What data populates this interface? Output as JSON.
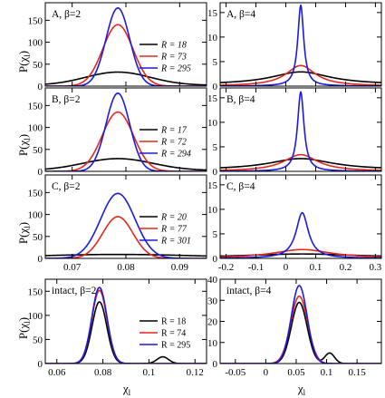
{
  "colors": {
    "black": "#000000",
    "red": "#e8261c",
    "blue": "#1a1ae0"
  },
  "axis_labels": {
    "y": "P(χ",
    "y_sub": "l",
    "y_close": ")",
    "x": "χ",
    "x_sub": "l"
  },
  "chart_data": [
    {
      "type": "line",
      "label": "A, β=2",
      "legend_italic": true,
      "xlim": [
        0.065,
        0.095
      ],
      "ylim": [
        0,
        190
      ],
      "yticks": [
        0,
        50,
        100,
        150
      ],
      "xticks": [
        0.07,
        0.08,
        0.09
      ],
      "series": [
        {
          "name": "R = 18",
          "color": "black",
          "peak": 30,
          "sigma": 0.006,
          "base": 2
        },
        {
          "name": "R = 73",
          "color": "red",
          "peak": 140,
          "sigma": 0.0028,
          "base": 0
        },
        {
          "name": "R = 295",
          "color": "blue",
          "peak": 178,
          "sigma": 0.0022,
          "base": 0
        }
      ],
      "center": 0.0785
    },
    {
      "type": "line",
      "label": "A, β=4",
      "xlim": [
        -0.22,
        0.32
      ],
      "ylim": [
        0,
        17
      ],
      "yticks": [
        0,
        5,
        10,
        15
      ],
      "xticks": [
        -0.2,
        -0.1,
        0,
        0.1,
        0.2,
        0.3
      ],
      "series": [
        {
          "name": "",
          "color": "black",
          "peak": 2.6,
          "sigma": 0.12,
          "base": 0.3
        },
        {
          "name": "",
          "color": "red",
          "peak": 4.2,
          "sigma": 0.06,
          "base": 0
        },
        {
          "name": "",
          "color": "blue",
          "peak": 16.5,
          "sigma": 0.012,
          "base": 0
        }
      ],
      "center": 0.05,
      "lorentz": true
    },
    {
      "type": "line",
      "label": "B, β=2",
      "legend_italic": true,
      "xlim": [
        0.065,
        0.095
      ],
      "ylim": [
        0,
        190
      ],
      "yticks": [
        0,
        50,
        100,
        150
      ],
      "xticks": [
        0.07,
        0.08,
        0.09
      ],
      "series": [
        {
          "name": "R = 17",
          "color": "black",
          "peak": 27,
          "sigma": 0.0065,
          "base": 2
        },
        {
          "name": "R = 72",
          "color": "red",
          "peak": 135,
          "sigma": 0.0029,
          "base": 0
        },
        {
          "name": "R = 294",
          "color": "blue",
          "peak": 178,
          "sigma": 0.0022,
          "base": 0
        }
      ],
      "center": 0.0785
    },
    {
      "type": "line",
      "label": "B, β=4",
      "xlim": [
        -0.22,
        0.32
      ],
      "ylim": [
        0,
        17
      ],
      "yticks": [
        0,
        5,
        10,
        15
      ],
      "xticks": [
        -0.2,
        -0.1,
        0,
        0.1,
        0.2,
        0.3
      ],
      "series": [
        {
          "name": "",
          "color": "black",
          "peak": 2.3,
          "sigma": 0.13,
          "base": 0.3
        },
        {
          "name": "",
          "color": "red",
          "peak": 3.4,
          "sigma": 0.07,
          "base": 0
        },
        {
          "name": "",
          "color": "blue",
          "peak": 16.2,
          "sigma": 0.013,
          "base": 0
        }
      ],
      "center": 0.05,
      "lorentz": true
    },
    {
      "type": "line",
      "label": "C, β=2",
      "legend_italic": true,
      "xlim": [
        0.065,
        0.095
      ],
      "ylim": [
        0,
        190
      ],
      "yticks": [
        0,
        50,
        100,
        150
      ],
      "xticks": [
        0.07,
        0.08,
        0.09
      ],
      "series": [
        {
          "name": "R = 20",
          "color": "black",
          "peak": 8,
          "sigma": 0.015,
          "base": 1
        },
        {
          "name": "R = 77",
          "color": "red",
          "peak": 95,
          "sigma": 0.0028,
          "base": 0
        },
        {
          "name": "R = 301",
          "color": "blue",
          "peak": 148,
          "sigma": 0.0032,
          "base": 0
        }
      ],
      "center": 0.0785
    },
    {
      "type": "line",
      "label": "C, β=4",
      "xlim": [
        -0.22,
        0.32
      ],
      "ylim": [
        0,
        17
      ],
      "yticks": [
        0,
        5,
        10,
        15
      ],
      "xticks": [
        -0.2,
        -0.1,
        0,
        0.1,
        0.2,
        0.3
      ],
      "series": [
        {
          "name": "",
          "color": "black",
          "peak": 0.8,
          "sigma": 0.25,
          "base": 0.1
        },
        {
          "name": "",
          "color": "red",
          "peak": 1.8,
          "sigma": 0.12,
          "base": 0
        },
        {
          "name": "",
          "color": "blue",
          "peak": 9.3,
          "sigma": 0.025,
          "base": 0
        }
      ],
      "center": 0.055,
      "lorentz": true
    },
    {
      "type": "line",
      "label": "intact, β=2",
      "legend_italic": false,
      "xlim": [
        0.055,
        0.125
      ],
      "ylim": [
        0,
        175
      ],
      "yticks": [
        0,
        50,
        100,
        150
      ],
      "xticks": [
        0.06,
        0.08,
        0.1,
        0.12
      ],
      "series": [
        {
          "name": "R = 18",
          "color": "black",
          "peak": 128,
          "sigma": 0.0032,
          "base": 0,
          "bump": [
            0.106,
            14,
            0.0025
          ]
        },
        {
          "name": "R = 74",
          "color": "red",
          "peak": 152,
          "sigma": 0.0033,
          "base": 0
        },
        {
          "name": "R = 295",
          "color": "blue",
          "peak": 158,
          "sigma": 0.0033,
          "base": 0
        }
      ],
      "center": 0.0785
    },
    {
      "type": "line",
      "label": "intact, β=4",
      "xlim": [
        -0.075,
        0.19
      ],
      "ylim": [
        0,
        40
      ],
      "yticks": [
        0,
        10,
        20,
        30,
        40
      ],
      "xticks": [
        -0.05,
        0,
        0.05,
        0.1,
        0.15
      ],
      "series": [
        {
          "name": "",
          "color": "black",
          "peak": 29,
          "sigma": 0.013,
          "base": 0,
          "bump": [
            0.105,
            5,
            0.008
          ]
        },
        {
          "name": "",
          "color": "red",
          "peak": 32,
          "sigma": 0.014,
          "base": 0
        },
        {
          "name": "",
          "color": "blue",
          "peak": 37,
          "sigma": 0.013,
          "base": 0
        }
      ],
      "center": 0.055
    }
  ]
}
